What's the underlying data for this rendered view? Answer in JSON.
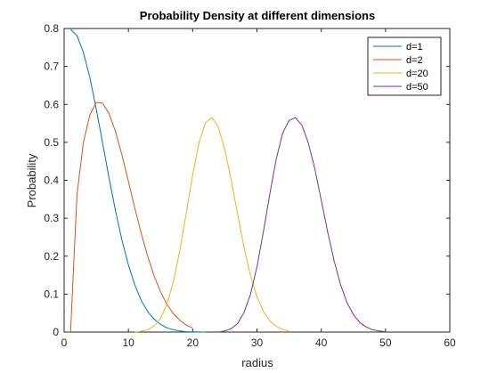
{
  "chart_data": {
    "type": "line",
    "title": "Probability Density at different dimensions",
    "xlabel": "radius",
    "ylabel": "Probability",
    "xlim": [
      0,
      60
    ],
    "ylim": [
      0,
      0.8
    ],
    "xticks": [
      0,
      10,
      20,
      30,
      40,
      50,
      60
    ],
    "yticks": [
      0,
      0.1,
      0.2,
      0.3,
      0.4,
      0.5,
      0.6,
      0.7,
      0.8
    ],
    "ytick_labels": [
      "0",
      "0.1",
      "0.2",
      "0.3",
      "0.4",
      "0.5",
      "0.6",
      "0.7",
      "0.8"
    ],
    "xtick_labels": [
      "0",
      "10",
      "20",
      "30",
      "40",
      "50",
      "60"
    ],
    "grid": false,
    "legend_position": "top-right",
    "series": [
      {
        "name": "d=1",
        "color": "#0072BD",
        "x": [
          1,
          2,
          3,
          4,
          5,
          6,
          7,
          8,
          9,
          10,
          11,
          12,
          13,
          14,
          15,
          16,
          17,
          18,
          19,
          20,
          21,
          22
        ],
        "y": [
          0.798,
          0.781,
          0.737,
          0.671,
          0.588,
          0.497,
          0.405,
          0.319,
          0.242,
          0.177,
          0.124,
          0.083,
          0.054,
          0.034,
          0.02,
          0.011,
          0.006,
          0.003,
          0.001,
          0.0007,
          0.0003,
          0.0001
        ]
      },
      {
        "name": "d=2",
        "color": "#D95319",
        "x": [
          1,
          2,
          3,
          4,
          5,
          6,
          7,
          8,
          9,
          10,
          11,
          12,
          13,
          14,
          15,
          16,
          17,
          18,
          19,
          20
        ],
        "y": [
          0.0,
          0.362,
          0.5,
          0.572,
          0.605,
          0.603,
          0.575,
          0.528,
          0.466,
          0.397,
          0.326,
          0.26,
          0.2,
          0.148,
          0.106,
          0.073,
          0.048,
          0.031,
          0.018,
          0.011
        ]
      },
      {
        "name": "d=20",
        "color": "#EDB120",
        "x": [
          11,
          12,
          13,
          14,
          15,
          16,
          17,
          18,
          19,
          20,
          21,
          22,
          23,
          24,
          25,
          26,
          27,
          28,
          29,
          30,
          31,
          32,
          33,
          34,
          35
        ],
        "y": [
          0.0,
          0.002,
          0.006,
          0.016,
          0.036,
          0.074,
          0.133,
          0.215,
          0.313,
          0.414,
          0.5,
          0.552,
          0.565,
          0.54,
          0.48,
          0.4,
          0.31,
          0.222,
          0.148,
          0.093,
          0.054,
          0.029,
          0.015,
          0.007,
          0.003
        ]
      },
      {
        "name": "d=50",
        "color": "#7E2F8E",
        "x": [
          24,
          25,
          26,
          27,
          28,
          29,
          30,
          31,
          32,
          33,
          34,
          35,
          36,
          37,
          38,
          39,
          40,
          41,
          42,
          43,
          44,
          45,
          46,
          47,
          48,
          49,
          50
        ],
        "y": [
          0.0,
          0.003,
          0.009,
          0.023,
          0.052,
          0.1,
          0.172,
          0.264,
          0.364,
          0.456,
          0.524,
          0.558,
          0.565,
          0.545,
          0.498,
          0.43,
          0.348,
          0.264,
          0.188,
          0.125,
          0.078,
          0.046,
          0.025,
          0.013,
          0.006,
          0.003,
          0.001
        ]
      }
    ]
  }
}
